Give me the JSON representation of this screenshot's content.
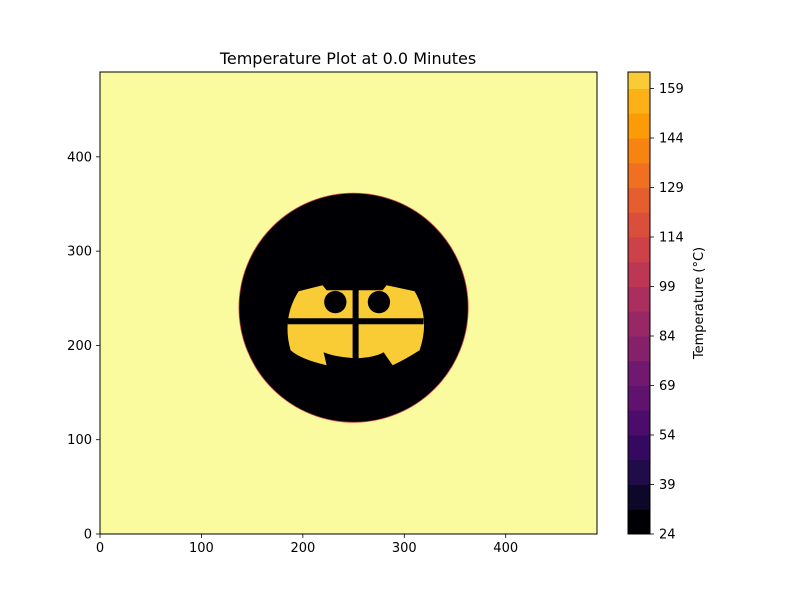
{
  "chart_data": {
    "type": "heatmap",
    "title": "Temperature Plot at 0.0 Minutes",
    "xlabel": "",
    "ylabel": "",
    "xlim": [
      0,
      490
    ],
    "ylim": [
      0,
      490
    ],
    "x_ticks": [
      0,
      100,
      200,
      300,
      400
    ],
    "y_ticks": [
      0,
      100,
      200,
      300,
      400
    ],
    "grid": false,
    "colormap": "inferno",
    "colorbar": {
      "label": "Temperature (°C)",
      "range": [
        24,
        164
      ],
      "ticks": [
        24,
        39,
        54,
        69,
        84,
        99,
        114,
        129,
        144,
        159
      ],
      "level_step": 7.5,
      "colors": [
        "#000004",
        "#0d0829",
        "#1f0c48",
        "#360961",
        "#4b0c6b",
        "#5f136e",
        "#71196e",
        "#85216b",
        "#982766",
        "#ab2f5e",
        "#bc3754",
        "#cc4248",
        "#da4e3c",
        "#e65d2f",
        "#f06f20",
        "#f78311",
        "#fb9b06",
        "#fcb216",
        "#f9cb35",
        "#f2e661",
        "#f9fb9e"
      ]
    },
    "background": {
      "temperature": 164,
      "color": "#f9fb9e"
    },
    "regions": [
      {
        "name": "disc",
        "shape": "circle",
        "center": [
          250,
          240
        ],
        "radius": 113,
        "temperature": 24
      },
      {
        "name": "face",
        "shape": "rounded-shape",
        "center": [
          252,
          232
        ],
        "temperature": 164
      },
      {
        "name": "crossbar",
        "shape": "band",
        "center": [
          252,
          232
        ],
        "temperature": 24
      },
      {
        "name": "eye-left",
        "shape": "circle",
        "center": [
          232,
          246
        ],
        "radius": 11,
        "temperature": 24
      },
      {
        "name": "eye-right",
        "shape": "circle",
        "center": [
          275,
          246
        ],
        "radius": 11,
        "temperature": 24
      }
    ]
  }
}
